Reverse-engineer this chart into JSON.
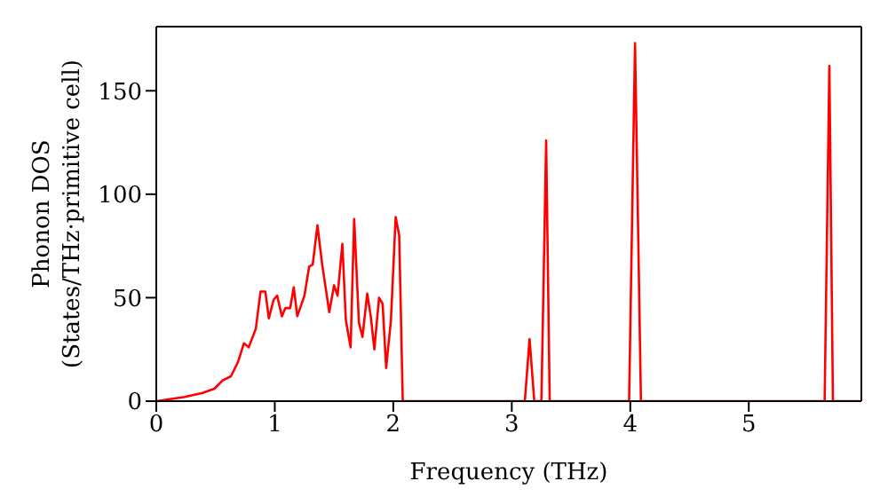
{
  "chart_data": {
    "type": "line",
    "xlabel": "Frequency (THz)",
    "ylabel": "Phonon DOS\n(States/THz·primitive cell)",
    "xlim": [
      0,
      5.95
    ],
    "ylim": [
      0,
      181
    ],
    "xticks": [
      0,
      1,
      2,
      3,
      4,
      5
    ],
    "yticks": [
      0,
      50,
      100,
      150
    ],
    "x": [
      0,
      0.24,
      0.39,
      0.49,
      0.56,
      0.63,
      0.69,
      0.74,
      0.78,
      0.84,
      0.88,
      0.92,
      0.95,
      0.99,
      1.02,
      1.06,
      1.09,
      1.13,
      1.16,
      1.19,
      1.25,
      1.29,
      1.32,
      1.36,
      1.4,
      1.46,
      1.5,
      1.53,
      1.57,
      1.6,
      1.64,
      1.67,
      1.71,
      1.74,
      1.78,
      1.81,
      1.84,
      1.88,
      1.91,
      1.94,
      1.98,
      2.02,
      2.05,
      2.08,
      3.11,
      3.15,
      3.19,
      3.25,
      3.29,
      3.32,
      3.99,
      4.04,
      4.09,
      5.64,
      5.68,
      5.71,
      5.95
    ],
    "series": [
      {
        "color": "#ff0000",
        "values": [
          0,
          2,
          4,
          6,
          10,
          12,
          19,
          28,
          26,
          35,
          53,
          53,
          40,
          49,
          51,
          41,
          45,
          45,
          55,
          41,
          51,
          65,
          66,
          85,
          66,
          43,
          56,
          51,
          76,
          39,
          26,
          88,
          38,
          31,
          52,
          41,
          25,
          50,
          47,
          16,
          39,
          89,
          80,
          0,
          0,
          30,
          0,
          0,
          126,
          0,
          0,
          173,
          0,
          0,
          162,
          0,
          0
        ]
      }
    ]
  }
}
